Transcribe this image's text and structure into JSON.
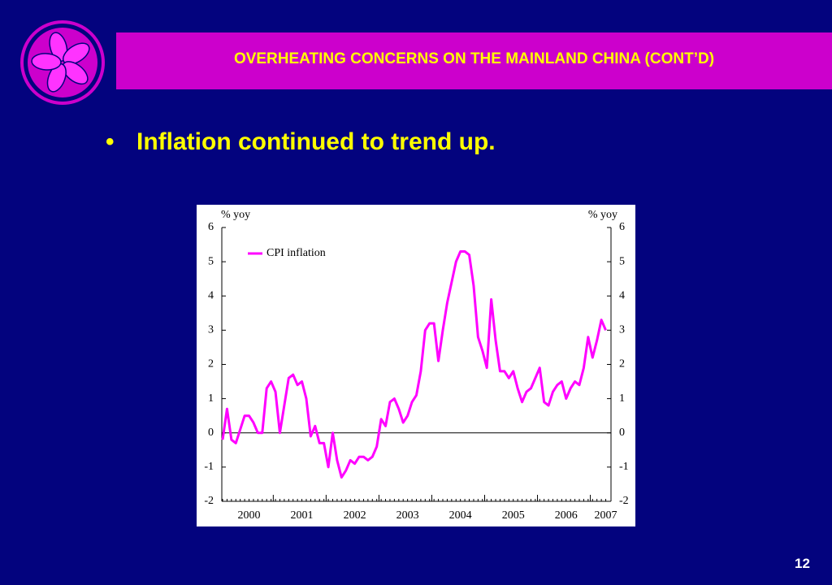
{
  "header": {
    "title": "OVERHEATING CONCERNS ON THE MAINLAND CHINA (CONT’D)"
  },
  "bullet": "Inflation continued to trend up.",
  "page_number": "12",
  "chart_data": {
    "type": "line",
    "y_label": "% yoy",
    "y2_label": "% yoy",
    "categories": [
      null,
      null,
      null,
      null,
      null,
      null,
      "2000",
      null,
      null,
      null,
      null,
      null,
      null,
      null,
      null,
      null,
      null,
      null,
      "2001",
      null,
      null,
      null,
      null,
      null,
      null,
      null,
      null,
      null,
      null,
      null,
      "2002",
      null,
      null,
      null,
      null,
      null,
      null,
      null,
      null,
      null,
      null,
      null,
      "2003",
      null,
      null,
      null,
      null,
      null,
      null,
      null,
      null,
      null,
      null,
      null,
      "2004",
      null,
      null,
      null,
      null,
      null,
      null,
      null,
      null,
      null,
      null,
      null,
      "2005",
      null,
      null,
      null,
      null,
      null,
      null,
      null,
      null,
      null,
      null,
      null,
      "2006",
      null,
      null,
      null,
      null,
      null,
      null,
      null,
      null,
      "2007"
    ],
    "series": [
      {
        "name": "CPI inflation",
        "color": "#ff00ff",
        "values": [
          -0.2,
          0.7,
          -0.2,
          -0.3,
          0.1,
          0.5,
          0.5,
          0.3,
          0.0,
          0.0,
          1.3,
          1.5,
          1.2,
          0.0,
          0.8,
          1.6,
          1.7,
          1.4,
          1.5,
          1.0,
          -0.1,
          0.2,
          -0.3,
          -0.3,
          -1.0,
          0.0,
          -0.8,
          -1.3,
          -1.1,
          -0.8,
          -0.9,
          -0.7,
          -0.7,
          -0.8,
          -0.7,
          -0.4,
          0.4,
          0.2,
          0.9,
          1.0,
          0.7,
          0.3,
          0.5,
          0.9,
          1.1,
          1.8,
          3.0,
          3.2,
          3.2,
          2.1,
          3.0,
          3.8,
          4.4,
          5.0,
          5.3,
          5.3,
          5.2,
          4.3,
          2.8,
          2.4,
          1.9,
          3.9,
          2.7,
          1.8,
          1.8,
          1.6,
          1.8,
          1.3,
          0.9,
          1.2,
          1.3,
          1.6,
          1.9,
          0.9,
          0.8,
          1.2,
          1.4,
          1.5,
          1.0,
          1.3,
          1.5,
          1.4,
          1.9,
          2.8,
          2.2,
          2.7,
          3.3,
          3.0
        ]
      }
    ],
    "ylim": [
      -2,
      6
    ],
    "yticks": [
      -2,
      -1,
      0,
      1,
      2,
      3,
      4,
      5,
      6
    ],
    "y2lim": [
      -2,
      6
    ],
    "y2ticks": [
      -2,
      -1,
      0,
      1,
      2,
      3,
      4,
      5,
      6
    ],
    "zero_line": true,
    "legend": "upper left"
  }
}
